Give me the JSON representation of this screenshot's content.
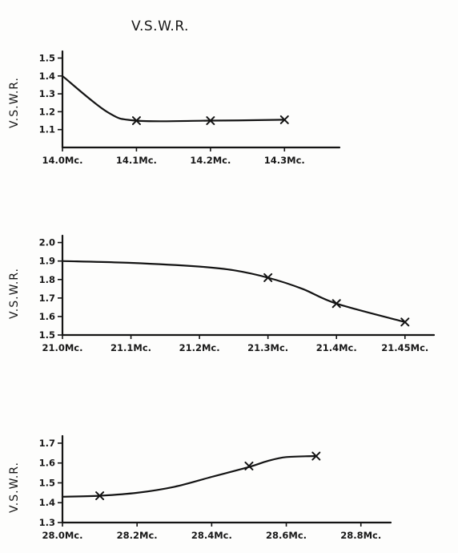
{
  "title": "V.S.W.R.",
  "colors": {
    "ink": "#141414",
    "paper": "#fdfdfc"
  },
  "chart_data": [
    {
      "type": "line",
      "title": "",
      "ylabel": "V.S.W.R.",
      "xlabel": "",
      "x_ticks": [
        {
          "value": 14.0,
          "label": "14.0Mc."
        },
        {
          "value": 14.1,
          "label": "14.1Mc."
        },
        {
          "value": 14.2,
          "label": "14.2Mc."
        },
        {
          "value": 14.3,
          "label": "14.3Mc."
        }
      ],
      "y_ticks": [
        {
          "value": 1.1,
          "label": "1.1"
        },
        {
          "value": 1.2,
          "label": "1.2"
        },
        {
          "value": 1.3,
          "label": "1.3"
        },
        {
          "value": 1.4,
          "label": "1.4"
        },
        {
          "value": 1.5,
          "label": "1.5"
        }
      ],
      "xlim": [
        14.0,
        14.37
      ],
      "ylim": [
        1.0,
        1.52
      ],
      "curve": {
        "x": [
          14.0,
          14.06,
          14.1,
          14.2,
          14.3
        ],
        "y": [
          1.4,
          1.2,
          1.15,
          1.15,
          1.155
        ]
      },
      "markers": {
        "x": [
          14.1,
          14.2,
          14.3
        ],
        "y": [
          1.15,
          1.15,
          1.155
        ]
      }
    },
    {
      "type": "line",
      "title": "",
      "ylabel": "V.S.W.R.",
      "xlabel": "",
      "x_ticks": [
        {
          "value": 21.0,
          "label": "21.0Mc."
        },
        {
          "value": 21.1,
          "label": "21.1Mc."
        },
        {
          "value": 21.2,
          "label": "21.2Mc."
        },
        {
          "value": 21.3,
          "label": "21.3Mc."
        },
        {
          "value": 21.4,
          "label": "21.4Mc."
        },
        {
          "value": 21.5,
          "label": "21.45Mc."
        }
      ],
      "y_ticks": [
        {
          "value": 1.5,
          "label": "1.5"
        },
        {
          "value": 1.6,
          "label": "1.6"
        },
        {
          "value": 1.7,
          "label": "1.7"
        },
        {
          "value": 1.8,
          "label": "1.8"
        },
        {
          "value": 1.9,
          "label": "1.9"
        },
        {
          "value": 2.0,
          "label": "2.0"
        }
      ],
      "xlim": [
        21.0,
        21.54
      ],
      "ylim": [
        1.5,
        2.02
      ],
      "curve": {
        "x": [
          21.0,
          21.1,
          21.2,
          21.25,
          21.3,
          21.35,
          21.4,
          21.5
        ],
        "y": [
          1.9,
          1.89,
          1.87,
          1.85,
          1.81,
          1.75,
          1.67,
          1.57
        ]
      },
      "markers": {
        "x": [
          21.3,
          21.4,
          21.5
        ],
        "y": [
          1.81,
          1.67,
          1.57
        ]
      }
    },
    {
      "type": "line",
      "title": "",
      "ylabel": "V.S.W.R.",
      "xlabel": "",
      "x_ticks": [
        {
          "value": 28.0,
          "label": "28.0Mc."
        },
        {
          "value": 28.2,
          "label": "28.2Mc."
        },
        {
          "value": 28.4,
          "label": "28.4Mc."
        },
        {
          "value": 28.6,
          "label": "28.6Mc."
        },
        {
          "value": 28.8,
          "label": "28.8Mc."
        }
      ],
      "y_ticks": [
        {
          "value": 1.3,
          "label": "1.3"
        },
        {
          "value": 1.4,
          "label": "1.4"
        },
        {
          "value": 1.5,
          "label": "1.5"
        },
        {
          "value": 1.6,
          "label": "1.6"
        },
        {
          "value": 1.7,
          "label": "1.7"
        }
      ],
      "xlim": [
        28.0,
        28.88
      ],
      "ylim": [
        1.3,
        1.72
      ],
      "curve": {
        "x": [
          28.0,
          28.1,
          28.2,
          28.3,
          28.4,
          28.5,
          28.55,
          28.6,
          28.68
        ],
        "y": [
          1.43,
          1.435,
          1.45,
          1.48,
          1.53,
          1.58,
          1.61,
          1.63,
          1.635
        ]
      },
      "markers": {
        "x": [
          28.1,
          28.5,
          28.68
        ],
        "y": [
          1.435,
          1.585,
          1.635
        ]
      }
    }
  ]
}
